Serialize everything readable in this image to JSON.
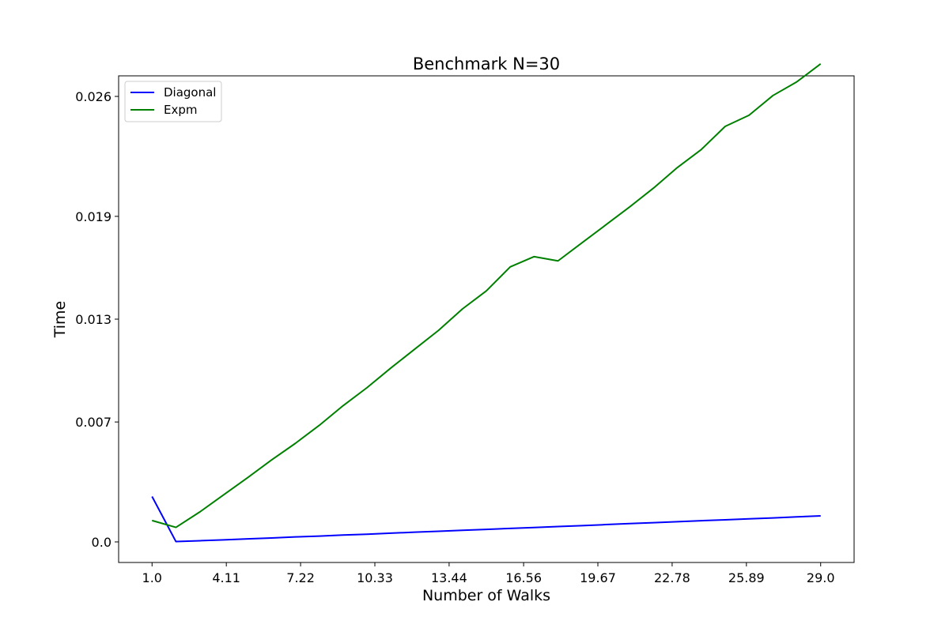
{
  "chart_data": {
    "type": "line",
    "title": "Benchmark N=30",
    "xlabel": "Number of Walks",
    "ylabel": "Time",
    "xlim": [
      -0.4,
      30.4
    ],
    "ylim": [
      -0.0012,
      0.0272
    ],
    "xticks": [
      1.0,
      4.11,
      7.22,
      10.33,
      13.44,
      16.56,
      19.67,
      22.78,
      25.89,
      29.0
    ],
    "xtick_labels": [
      "1.0",
      "4.11",
      "7.22",
      "10.33",
      "13.44",
      "16.56",
      "19.67",
      "22.78",
      "25.89",
      "29.0"
    ],
    "yticks": [
      0.0,
      0.007,
      0.013,
      0.019,
      0.026
    ],
    "ytick_labels": [
      "0.0",
      "0.007",
      "0.013",
      "0.019",
      "0.026"
    ],
    "grid": false,
    "legend_position": "top-left",
    "series": [
      {
        "name": "Diagonal",
        "color": "#0000ff",
        "x": [
          1,
          2,
          3,
          4,
          5,
          6,
          7,
          8,
          9,
          10,
          11,
          12,
          13,
          14,
          15,
          16,
          17,
          18,
          19,
          20,
          21,
          22,
          23,
          24,
          25,
          26,
          27,
          28,
          29
        ],
        "y": [
          0.00265,
          2e-05,
          7e-05,
          0.00012,
          0.00018,
          0.00023,
          0.00029,
          0.00034,
          0.0004,
          0.00045,
          0.00051,
          0.00057,
          0.00062,
          0.00068,
          0.00073,
          0.00079,
          0.00084,
          0.0009,
          0.00095,
          0.00101,
          0.00107,
          0.00112,
          0.00118,
          0.00124,
          0.00129,
          0.00135,
          0.0014,
          0.00146,
          0.00152
        ]
      },
      {
        "name": "Expm",
        "color": "#008000",
        "x": [
          1,
          2,
          3,
          4,
          5,
          6,
          7,
          8,
          9,
          10,
          11,
          12,
          13,
          14,
          15,
          16,
          17,
          18,
          19,
          20,
          21,
          22,
          23,
          24,
          25,
          26,
          27,
          28,
          29
        ],
        "y": [
          0.00125,
          0.00085,
          0.00175,
          0.00275,
          0.00375,
          0.00478,
          0.00575,
          0.0068,
          0.00795,
          0.009,
          0.01015,
          0.01125,
          0.01235,
          0.0136,
          0.01465,
          0.01605,
          0.01665,
          0.0164,
          0.01745,
          0.0185,
          0.01955,
          0.02065,
          0.02185,
          0.0229,
          0.02425,
          0.0249,
          0.02605,
          0.02685,
          0.0279
        ]
      }
    ]
  }
}
